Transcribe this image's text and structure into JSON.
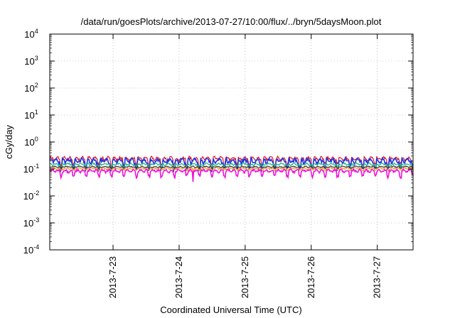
{
  "chart_data": {
    "type": "line",
    "title": "/data/run/goesPlots/archive/2013-07-27/10:00/flux/../bryn/5daysMoon.plot",
    "xlabel": "Coordinated Universal Time (UTC)",
    "ylabel": "cGy/day",
    "yscale": "log",
    "ylim": [
      0.0001,
      10000
    ],
    "xlim": [
      "2013-07-22T01:00",
      "2013-07-27T13:00"
    ],
    "y_ticks": [
      {
        "base": "10",
        "exp": "-4",
        "value": 0.0001
      },
      {
        "base": "10",
        "exp": "-3",
        "value": 0.001
      },
      {
        "base": "10",
        "exp": "-2",
        "value": 0.01
      },
      {
        "base": "10",
        "exp": "-1",
        "value": 0.1
      },
      {
        "base": "10",
        "exp": "0",
        "value": 1
      },
      {
        "base": "10",
        "exp": "1",
        "value": 10
      },
      {
        "base": "10",
        "exp": "2",
        "value": 100
      },
      {
        "base": "10",
        "exp": "3",
        "value": 1000
      },
      {
        "base": "10",
        "exp": "4",
        "value": 10000
      }
    ],
    "x_ticks": [
      {
        "label": "2013-7-23",
        "value": "2013-07-23T00:00"
      },
      {
        "label": "2013-7-24",
        "value": "2013-07-24T00:00"
      },
      {
        "label": "2013-7-25",
        "value": "2013-07-25T00:00"
      },
      {
        "label": "2013-7-26",
        "value": "2013-07-26T00:00"
      },
      {
        "label": "2013-7-27",
        "value": "2013-07-27T00:00"
      }
    ],
    "grid": true,
    "series": [
      {
        "color": "#e0142a",
        "base": 0.24,
        "amp": 0.06,
        "dip": 0.55
      },
      {
        "color": "#2233dd",
        "base": 0.2,
        "amp": 0.06,
        "dip": 0.45
      },
      {
        "color": "#16b58f",
        "base": 0.15,
        "amp": 0.02,
        "dip": 0.75
      },
      {
        "color": "#333333",
        "base": 0.12,
        "amp": 0.01,
        "dip": 0.85
      },
      {
        "color": "#f09a1a",
        "base": 0.105,
        "amp": 0.01,
        "dip": 0.85
      },
      {
        "color": "#ee11dd",
        "base": 0.085,
        "amp": 0.015,
        "dip": 0.6
      }
    ]
  }
}
